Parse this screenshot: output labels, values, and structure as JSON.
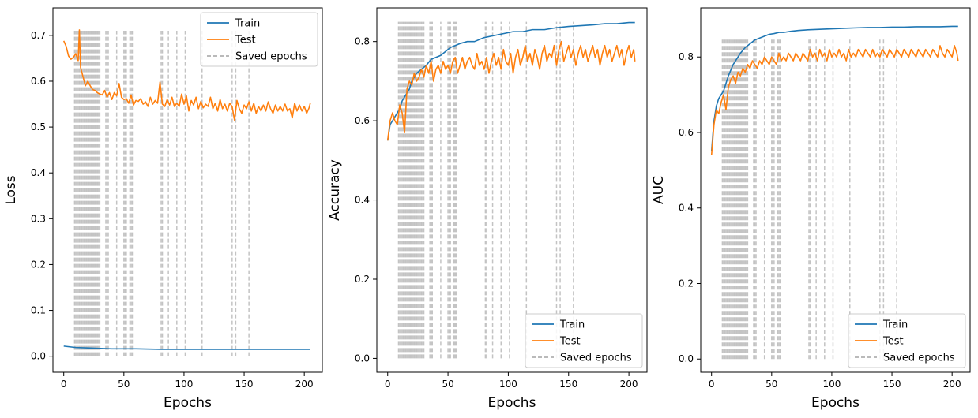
{
  "colors": {
    "train": "#1f77b4",
    "test": "#ff7f0e",
    "saved": "#b0b0b0",
    "axis": "#000000"
  },
  "legend_labels": {
    "train": "Train",
    "test": "Test",
    "saved": "Saved epochs"
  },
  "saved_epochs": [
    9,
    10,
    11,
    12,
    13,
    14,
    15,
    16,
    17,
    18,
    19,
    20,
    21,
    22,
    23,
    24,
    25,
    26,
    27,
    28,
    29,
    30,
    35,
    36,
    37,
    44,
    50,
    51,
    52,
    55,
    56,
    57,
    81,
    82,
    87,
    94,
    101,
    115,
    140,
    143,
    154
  ],
  "chart_data": [
    {
      "type": "line",
      "ylabel": "Loss",
      "xlabel": "Epochs",
      "xlim": [
        -9,
        215
      ],
      "ylim": [
        -0.035,
        0.76
      ],
      "xticks": [
        0,
        50,
        100,
        150,
        200
      ],
      "yticks": [
        0.0,
        0.1,
        0.2,
        0.3,
        0.4,
        0.5,
        0.6,
        0.7
      ],
      "legend_placement": "upper-right",
      "legend_entries": [
        "Train",
        "Test",
        "Saved epochs"
      ],
      "series": [
        {
          "name": "Train",
          "x": [
            0,
            10,
            20,
            30,
            40,
            60,
            80,
            100,
            120,
            150,
            180,
            205
          ],
          "y": [
            0.022,
            0.019,
            0.018,
            0.017,
            0.016,
            0.016,
            0.015,
            0.015,
            0.015,
            0.015,
            0.015,
            0.015
          ]
        },
        {
          "name": "Test",
          "x": [
            0,
            2,
            4,
            6,
            8,
            10,
            12,
            13,
            14,
            16,
            18,
            20,
            22,
            24,
            26,
            28,
            30,
            32,
            34,
            36,
            38,
            40,
            42,
            44,
            46,
            48,
            50,
            52,
            54,
            56,
            58,
            60,
            62,
            64,
            66,
            68,
            70,
            72,
            74,
            76,
            78,
            80,
            82,
            84,
            86,
            88,
            90,
            92,
            94,
            96,
            98,
            100,
            102,
            104,
            106,
            108,
            110,
            112,
            114,
            116,
            118,
            120,
            122,
            124,
            126,
            128,
            130,
            132,
            134,
            136,
            138,
            140,
            142,
            144,
            146,
            148,
            150,
            152,
            154,
            156,
            158,
            160,
            162,
            164,
            166,
            168,
            170,
            172,
            174,
            176,
            178,
            180,
            182,
            184,
            186,
            188,
            190,
            192,
            194,
            196,
            198,
            200,
            202,
            204,
            205
          ],
          "y": [
            0.688,
            0.676,
            0.655,
            0.648,
            0.652,
            0.66,
            0.645,
            0.712,
            0.63,
            0.61,
            0.59,
            0.6,
            0.59,
            0.582,
            0.58,
            0.575,
            0.572,
            0.57,
            0.58,
            0.565,
            0.575,
            0.56,
            0.575,
            0.568,
            0.595,
            0.565,
            0.56,
            0.562,
            0.552,
            0.57,
            0.548,
            0.558,
            0.556,
            0.562,
            0.55,
            0.555,
            0.545,
            0.565,
            0.55,
            0.558,
            0.552,
            0.598,
            0.55,
            0.545,
            0.56,
            0.548,
            0.565,
            0.545,
            0.552,
            0.545,
            0.572,
            0.55,
            0.568,
            0.535,
            0.558,
            0.548,
            0.565,
            0.54,
            0.556,
            0.542,
            0.55,
            0.545,
            0.565,
            0.54,
            0.552,
            0.535,
            0.56,
            0.54,
            0.55,
            0.535,
            0.552,
            0.545,
            0.515,
            0.558,
            0.54,
            0.53,
            0.548,
            0.54,
            0.555,
            0.535,
            0.552,
            0.53,
            0.545,
            0.535,
            0.548,
            0.535,
            0.555,
            0.54,
            0.53,
            0.548,
            0.535,
            0.545,
            0.535,
            0.55,
            0.535,
            0.54,
            0.52,
            0.552,
            0.535,
            0.548,
            0.535,
            0.545,
            0.53,
            0.542,
            0.552
          ]
        }
      ]
    },
    {
      "type": "line",
      "ylabel": "Accuracy",
      "xlabel": "Epochs",
      "xlim": [
        -9,
        215
      ],
      "ylim": [
        -0.035,
        0.885
      ],
      "xticks": [
        0,
        50,
        100,
        150,
        200
      ],
      "yticks": [
        0.0,
        0.2,
        0.4,
        0.6,
        0.8
      ],
      "legend_placement": "lower-right",
      "legend_entries": [
        "Train",
        "Test",
        "Saved epochs"
      ],
      "series": [
        {
          "name": "Train",
          "x": [
            0,
            2,
            4,
            6,
            8,
            10,
            12,
            14,
            16,
            18,
            20,
            24,
            28,
            32,
            36,
            40,
            44,
            48,
            52,
            56,
            60,
            66,
            72,
            80,
            88,
            96,
            104,
            112,
            120,
            130,
            140,
            150,
            160,
            170,
            180,
            190,
            200,
            205
          ],
          "y": [
            0.55,
            0.59,
            0.6,
            0.61,
            0.62,
            0.63,
            0.65,
            0.66,
            0.67,
            0.68,
            0.7,
            0.72,
            0.73,
            0.74,
            0.755,
            0.76,
            0.765,
            0.775,
            0.785,
            0.79,
            0.795,
            0.8,
            0.8,
            0.81,
            0.815,
            0.82,
            0.825,
            0.825,
            0.83,
            0.83,
            0.835,
            0.838,
            0.84,
            0.842,
            0.845,
            0.845,
            0.848,
            0.848
          ]
        },
        {
          "name": "Test",
          "x": [
            0,
            2,
            4,
            6,
            8,
            10,
            12,
            14,
            16,
            18,
            20,
            22,
            24,
            26,
            28,
            30,
            32,
            34,
            36,
            38,
            40,
            42,
            44,
            46,
            48,
            50,
            52,
            54,
            56,
            58,
            60,
            62,
            64,
            66,
            68,
            70,
            72,
            74,
            76,
            78,
            80,
            82,
            84,
            86,
            88,
            90,
            92,
            94,
            96,
            98,
            100,
            102,
            104,
            106,
            108,
            110,
            112,
            114,
            116,
            118,
            120,
            122,
            124,
            126,
            128,
            130,
            132,
            134,
            136,
            138,
            140,
            142,
            144,
            146,
            148,
            150,
            152,
            154,
            156,
            158,
            160,
            162,
            164,
            166,
            168,
            170,
            172,
            174,
            176,
            178,
            180,
            182,
            184,
            186,
            188,
            190,
            192,
            194,
            196,
            198,
            200,
            202,
            204,
            205
          ],
          "y": [
            0.55,
            0.6,
            0.62,
            0.6,
            0.59,
            0.64,
            0.62,
            0.57,
            0.68,
            0.7,
            0.69,
            0.72,
            0.7,
            0.71,
            0.73,
            0.71,
            0.74,
            0.72,
            0.75,
            0.7,
            0.73,
            0.74,
            0.72,
            0.75,
            0.73,
            0.74,
            0.72,
            0.75,
            0.76,
            0.72,
            0.74,
            0.76,
            0.73,
            0.75,
            0.76,
            0.74,
            0.73,
            0.77,
            0.74,
            0.75,
            0.73,
            0.76,
            0.72,
            0.75,
            0.77,
            0.74,
            0.76,
            0.73,
            0.78,
            0.75,
            0.74,
            0.77,
            0.72,
            0.76,
            0.78,
            0.74,
            0.76,
            0.79,
            0.75,
            0.77,
            0.74,
            0.78,
            0.76,
            0.73,
            0.77,
            0.79,
            0.75,
            0.77,
            0.76,
            0.79,
            0.74,
            0.78,
            0.8,
            0.75,
            0.77,
            0.79,
            0.76,
            0.78,
            0.74,
            0.77,
            0.79,
            0.76,
            0.78,
            0.75,
            0.77,
            0.79,
            0.76,
            0.78,
            0.74,
            0.77,
            0.79,
            0.76,
            0.78,
            0.75,
            0.77,
            0.79,
            0.76,
            0.78,
            0.74,
            0.77,
            0.79,
            0.76,
            0.78,
            0.75
          ]
        }
      ]
    },
    {
      "type": "line",
      "ylabel": "AUC",
      "xlabel": "Epochs",
      "xlim": [
        -9,
        215
      ],
      "ylim": [
        -0.035,
        0.93
      ],
      "xticks": [
        0,
        50,
        100,
        150,
        200
      ],
      "yticks": [
        0.0,
        0.2,
        0.4,
        0.6,
        0.8
      ],
      "legend_placement": "lower-right",
      "legend_entries": [
        "Train",
        "Test",
        "Saved epochs"
      ],
      "series": [
        {
          "name": "Train",
          "x": [
            0,
            2,
            4,
            6,
            8,
            10,
            12,
            14,
            16,
            18,
            20,
            24,
            28,
            32,
            36,
            40,
            44,
            48,
            52,
            56,
            60,
            66,
            72,
            80,
            88,
            96,
            104,
            112,
            120,
            130,
            140,
            150,
            160,
            170,
            180,
            190,
            200,
            205
          ],
          "y": [
            0.55,
            0.63,
            0.67,
            0.69,
            0.7,
            0.71,
            0.73,
            0.75,
            0.765,
            0.78,
            0.79,
            0.81,
            0.825,
            0.835,
            0.845,
            0.85,
            0.855,
            0.86,
            0.862,
            0.865,
            0.865,
            0.868,
            0.87,
            0.872,
            0.873,
            0.874,
            0.875,
            0.876,
            0.877,
            0.878,
            0.878,
            0.879,
            0.879,
            0.88,
            0.88,
            0.88,
            0.881,
            0.881
          ]
        },
        {
          "name": "Test",
          "x": [
            0,
            2,
            4,
            6,
            8,
            10,
            12,
            14,
            16,
            18,
            20,
            22,
            24,
            26,
            28,
            30,
            32,
            34,
            36,
            38,
            40,
            42,
            44,
            46,
            48,
            50,
            52,
            54,
            56,
            58,
            60,
            62,
            64,
            66,
            68,
            70,
            72,
            74,
            76,
            78,
            80,
            82,
            84,
            86,
            88,
            90,
            92,
            94,
            96,
            98,
            100,
            102,
            104,
            106,
            108,
            110,
            112,
            114,
            116,
            118,
            120,
            122,
            124,
            126,
            128,
            130,
            132,
            134,
            136,
            138,
            140,
            142,
            144,
            146,
            148,
            150,
            152,
            154,
            156,
            158,
            160,
            162,
            164,
            166,
            168,
            170,
            172,
            174,
            176,
            178,
            180,
            182,
            184,
            186,
            188,
            190,
            192,
            194,
            196,
            198,
            200,
            202,
            204,
            205
          ],
          "y": [
            0.54,
            0.62,
            0.66,
            0.65,
            0.68,
            0.7,
            0.66,
            0.72,
            0.74,
            0.75,
            0.73,
            0.76,
            0.75,
            0.77,
            0.76,
            0.78,
            0.77,
            0.79,
            0.78,
            0.77,
            0.79,
            0.78,
            0.8,
            0.79,
            0.78,
            0.8,
            0.79,
            0.78,
            0.81,
            0.79,
            0.8,
            0.79,
            0.81,
            0.8,
            0.79,
            0.81,
            0.8,
            0.79,
            0.81,
            0.8,
            0.79,
            0.82,
            0.8,
            0.81,
            0.79,
            0.82,
            0.8,
            0.81,
            0.79,
            0.82,
            0.8,
            0.81,
            0.8,
            0.82,
            0.8,
            0.81,
            0.79,
            0.82,
            0.8,
            0.81,
            0.8,
            0.82,
            0.81,
            0.8,
            0.82,
            0.81,
            0.8,
            0.82,
            0.8,
            0.81,
            0.8,
            0.82,
            0.81,
            0.8,
            0.82,
            0.81,
            0.8,
            0.82,
            0.81,
            0.8,
            0.82,
            0.81,
            0.8,
            0.82,
            0.81,
            0.8,
            0.82,
            0.81,
            0.8,
            0.82,
            0.81,
            0.8,
            0.82,
            0.81,
            0.8,
            0.83,
            0.81,
            0.8,
            0.82,
            0.81,
            0.8,
            0.83,
            0.81,
            0.79
          ]
        }
      ]
    }
  ]
}
